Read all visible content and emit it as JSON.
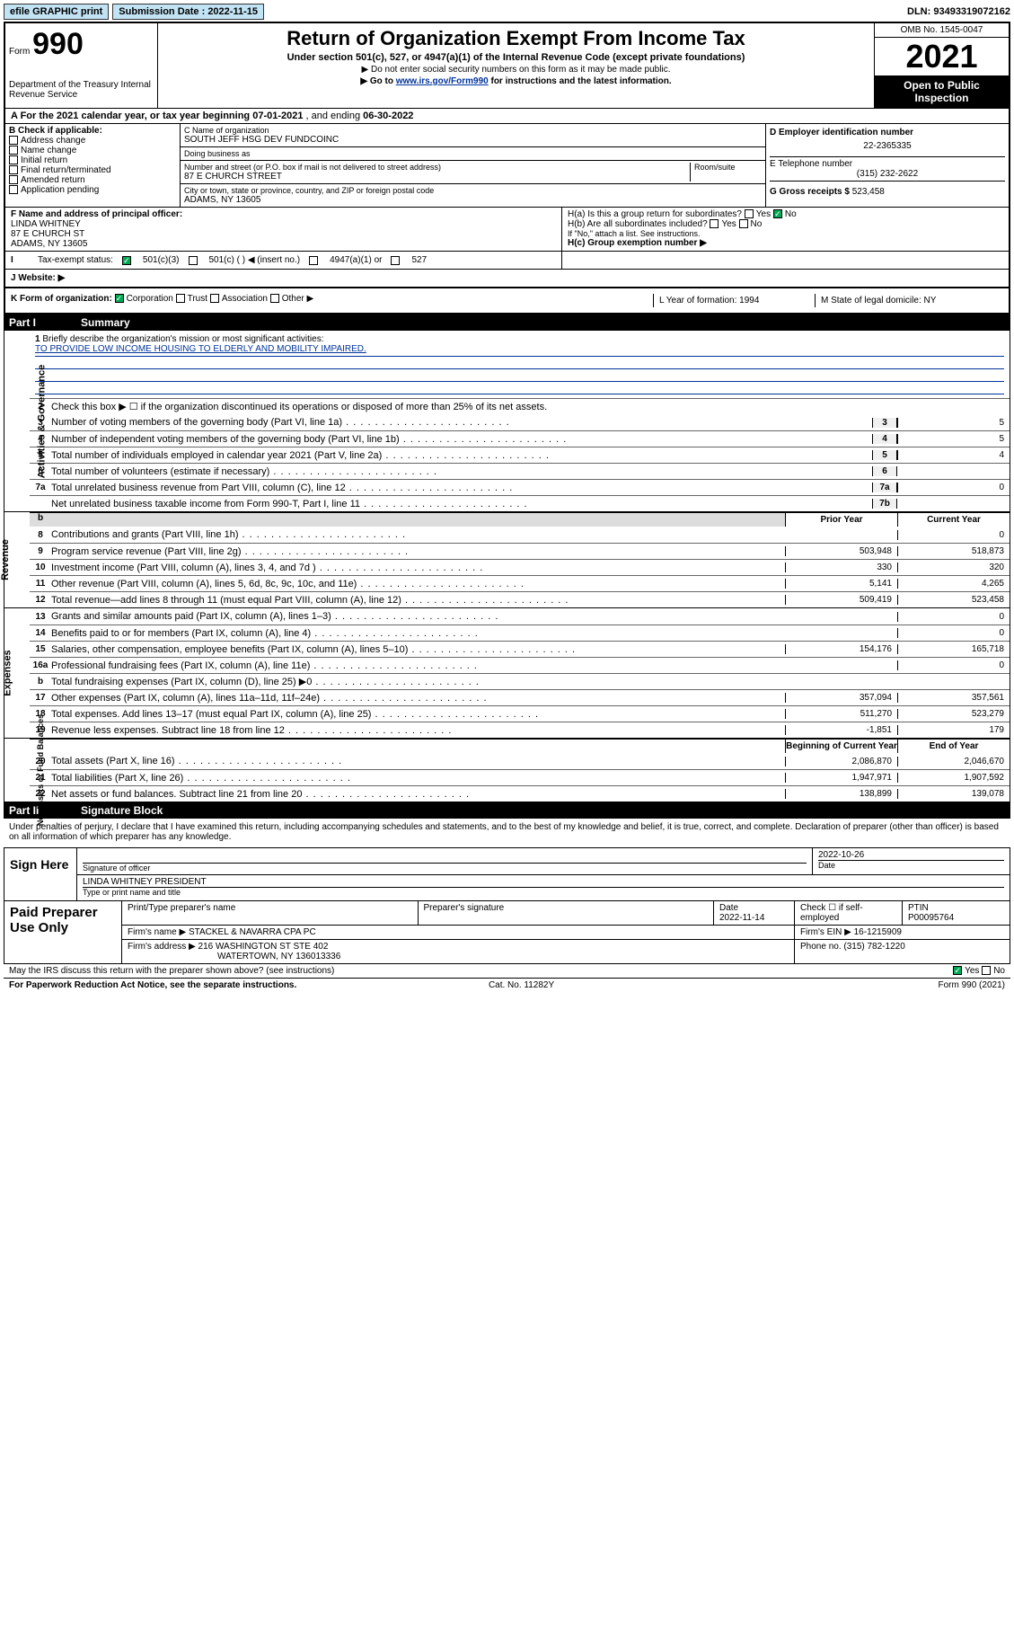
{
  "topbar": {
    "efile": "efile GRAPHIC print",
    "sub_label": "Submission Date : 2022-11-15",
    "dln": "DLN: 93493319072162"
  },
  "header": {
    "form_prefix": "Form",
    "form_no": "990",
    "dept": "Department of the Treasury\nInternal Revenue Service",
    "title": "Return of Organization Exempt From Income Tax",
    "subtitle": "Under section 501(c), 527, or 4947(a)(1) of the Internal Revenue Code (except private foundations)",
    "note1": "▶ Do not enter social security numbers on this form as it may be made public.",
    "note2_pre": "▶ Go to ",
    "note2_link": "www.irs.gov/Form990",
    "note2_post": " for instructions and the latest information.",
    "omb": "OMB No. 1545-0047",
    "year": "2021",
    "open_pub": "Open to Public Inspection"
  },
  "row_a": {
    "label_pre": "A For the 2021 calendar year, or tax year beginning ",
    "begin": "07-01-2021",
    "mid": " , and ending ",
    "end": "06-30-2022"
  },
  "col_b": {
    "title": "B Check if applicable:",
    "items": [
      "Address change",
      "Name change",
      "Initial return",
      "Final return/terminated",
      "Amended return",
      "Application pending"
    ]
  },
  "col_c": {
    "name_label": "C Name of organization",
    "name": "SOUTH JEFF HSG DEV FUNDCOINC",
    "dba_label": "Doing business as",
    "dba": "",
    "addr_label": "Number and street (or P.O. box if mail is not delivered to street address)",
    "room_label": "Room/suite",
    "addr": "87 E CHURCH STREET",
    "city_label": "City or town, state or province, country, and ZIP or foreign postal code",
    "city": "ADAMS, NY  13605"
  },
  "col_d": {
    "ein_label": "D Employer identification number",
    "ein": "22-2365335",
    "tel_label": "E Telephone number",
    "tel": "(315) 232-2622",
    "gross_label": "G Gross receipts $ ",
    "gross": "523,458"
  },
  "row_f": {
    "label": "F Name and address of principal officer:",
    "name": "LINDA WHITNEY",
    "addr1": "87 E CHURCH ST",
    "addr2": "ADAMS, NY  13605"
  },
  "row_h": {
    "ha": "H(a) Is this a group return for subordinates?",
    "hb": "H(b) Are all subordinates included?",
    "hb_note": "If \"No,\" attach a list. See instructions.",
    "hc": "H(c) Group exemption number ▶",
    "yes": "Yes",
    "no": "No"
  },
  "row_i": {
    "label": "Tax-exempt status:",
    "opts": [
      "501(c)(3)",
      "501(c) (  ) ◀ (insert no.)",
      "4947(a)(1) or",
      "527"
    ]
  },
  "row_j": {
    "label": "J   Website: ▶"
  },
  "row_k": {
    "label": "K Form of organization:",
    "opts": [
      "Corporation",
      "Trust",
      "Association",
      "Other ▶"
    ],
    "l": "L Year of formation: 1994",
    "m": "M State of legal domicile: NY"
  },
  "part1": {
    "hdr": "Part I",
    "title": "Summary"
  },
  "summary": {
    "l1_label": "Briefly describe the organization's mission or most significant activities:",
    "l1_text": "TO PROVIDE LOW INCOME HOUSING TO ELDERLY AND MOBILITY IMPAIRED.",
    "l2": "Check this box ▶ ☐ if the organization discontinued its operations or disposed of more than 25% of its net assets.",
    "lines_ag": [
      {
        "n": "3",
        "d": "Number of voting members of the governing body (Part VI, line 1a)",
        "nc": "3",
        "v": "5"
      },
      {
        "n": "4",
        "d": "Number of independent voting members of the governing body (Part VI, line 1b)",
        "nc": "4",
        "v": "5"
      },
      {
        "n": "5",
        "d": "Total number of individuals employed in calendar year 2021 (Part V, line 2a)",
        "nc": "5",
        "v": "4"
      },
      {
        "n": "6",
        "d": "Total number of volunteers (estimate if necessary)",
        "nc": "6",
        "v": ""
      },
      {
        "n": "7a",
        "d": "Total unrelated business revenue from Part VIII, column (C), line 12",
        "nc": "7a",
        "v": "0"
      },
      {
        "n": "",
        "d": "Net unrelated business taxable income from Form 990-T, Part I, line 11",
        "nc": "7b",
        "v": ""
      }
    ],
    "col_prior": "Prior Year",
    "col_curr": "Current Year",
    "revenue": [
      {
        "n": "8",
        "d": "Contributions and grants (Part VIII, line 1h)",
        "p": "",
        "c": "0"
      },
      {
        "n": "9",
        "d": "Program service revenue (Part VIII, line 2g)",
        "p": "503,948",
        "c": "518,873"
      },
      {
        "n": "10",
        "d": "Investment income (Part VIII, column (A), lines 3, 4, and 7d )",
        "p": "330",
        "c": "320"
      },
      {
        "n": "11",
        "d": "Other revenue (Part VIII, column (A), lines 5, 6d, 8c, 9c, 10c, and 11e)",
        "p": "5,141",
        "c": "4,265"
      },
      {
        "n": "12",
        "d": "Total revenue—add lines 8 through 11 (must equal Part VIII, column (A), line 12)",
        "p": "509,419",
        "c": "523,458"
      }
    ],
    "expenses": [
      {
        "n": "13",
        "d": "Grants and similar amounts paid (Part IX, column (A), lines 1–3)",
        "p": "",
        "c": "0"
      },
      {
        "n": "14",
        "d": "Benefits paid to or for members (Part IX, column (A), line 4)",
        "p": "",
        "c": "0"
      },
      {
        "n": "15",
        "d": "Salaries, other compensation, employee benefits (Part IX, column (A), lines 5–10)",
        "p": "154,176",
        "c": "165,718"
      },
      {
        "n": "16a",
        "d": "Professional fundraising fees (Part IX, column (A), line 11e)",
        "p": "",
        "c": "0"
      },
      {
        "n": "b",
        "d": "Total fundraising expenses (Part IX, column (D), line 25) ▶0",
        "p": "",
        "c": "",
        "gray": true
      },
      {
        "n": "17",
        "d": "Other expenses (Part IX, column (A), lines 11a–11d, 11f–24e)",
        "p": "357,094",
        "c": "357,561"
      },
      {
        "n": "18",
        "d": "Total expenses. Add lines 13–17 (must equal Part IX, column (A), line 25)",
        "p": "511,270",
        "c": "523,279"
      },
      {
        "n": "19",
        "d": "Revenue less expenses. Subtract line 18 from line 12",
        "p": "-1,851",
        "c": "179"
      }
    ],
    "col_begin": "Beginning of Current Year",
    "col_end": "End of Year",
    "netassets": [
      {
        "n": "20",
        "d": "Total assets (Part X, line 16)",
        "p": "2,086,870",
        "c": "2,046,670"
      },
      {
        "n": "21",
        "d": "Total liabilities (Part X, line 26)",
        "p": "1,947,971",
        "c": "1,907,592"
      },
      {
        "n": "22",
        "d": "Net assets or fund balances. Subtract line 21 from line 20",
        "p": "138,899",
        "c": "139,078"
      }
    ],
    "vlabels": {
      "ag": "Activities & Governance",
      "rev": "Revenue",
      "exp": "Expenses",
      "na": "Net Assets or\nFund Balances"
    }
  },
  "part2": {
    "hdr": "Part II",
    "title": "Signature Block"
  },
  "sig": {
    "declaration": "Under penalties of perjury, I declare that I have examined this return, including accompanying schedules and statements, and to the best of my knowledge and belief, it is true, correct, and complete. Declaration of preparer (other than officer) is based on all information of which preparer has any knowledge.",
    "sign_here": "Sign Here",
    "sig_officer": "Signature of officer",
    "date": "2022-10-26",
    "date_label": "Date",
    "officer": "LINDA WHITNEY PRESIDENT",
    "officer_label": "Type or print name and title",
    "paid": "Paid Preparer Use Only",
    "col_print": "Print/Type preparer's name",
    "col_sig": "Preparer's signature",
    "col_date": "Date",
    "pdate": "2022-11-14",
    "check": "Check ☐ if self-employed",
    "ptin_label": "PTIN",
    "ptin": "P00095764",
    "firm_name_label": "Firm's name    ▶ ",
    "firm_name": "STACKEL & NAVARRA CPA PC",
    "firm_ein_label": "Firm's EIN ▶ ",
    "firm_ein": "16-1215909",
    "firm_addr_label": "Firm's address ▶ ",
    "firm_addr1": "216 WASHINGTON ST STE 402",
    "firm_addr2": "WATERTOWN, NY  136013336",
    "phone_label": "Phone no. ",
    "phone": "(315) 782-1220",
    "may_irs": "May the IRS discuss this return with the preparer shown above? (see instructions)",
    "yes": "Yes",
    "no": "No"
  },
  "footer": {
    "left": "For Paperwork Reduction Act Notice, see the separate instructions.",
    "mid": "Cat. No. 11282Y",
    "right": "Form 990 (2021)"
  }
}
